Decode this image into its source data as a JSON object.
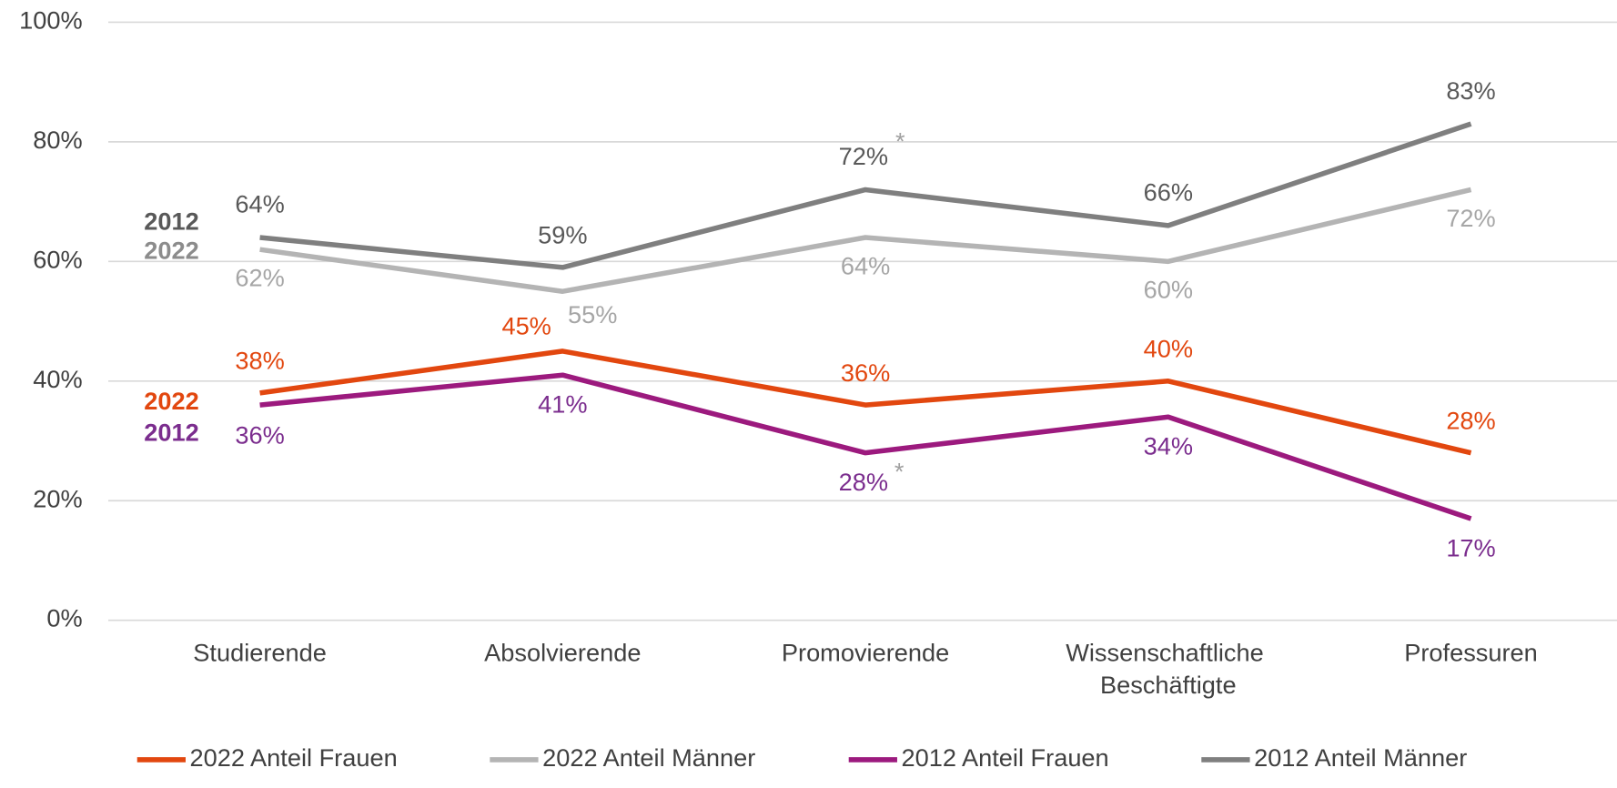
{
  "chart_data": {
    "type": "line",
    "categories": [
      "Studierende",
      "Absolvierende",
      "Promovierende",
      "Wissenschaftliche Beschäftigte",
      "Professuren"
    ],
    "ylim": [
      0,
      100
    ],
    "yticks": [
      {
        "value": 0,
        "label": "0%"
      },
      {
        "value": 20,
        "label": "20%"
      },
      {
        "value": 40,
        "label": "40%"
      },
      {
        "value": 60,
        "label": "60%"
      },
      {
        "value": 80,
        "label": "80%"
      },
      {
        "value": 100,
        "label": "100%"
      }
    ],
    "grid": true,
    "legend": "bottom",
    "series": [
      {
        "name": "2022 Anteil Frauen",
        "color": "#e2470f",
        "start_label": "2022",
        "values": [
          38,
          45,
          36,
          40,
          28
        ],
        "value_labels": [
          "38%",
          "45%",
          "36%",
          "40%",
          "28%"
        ]
      },
      {
        "name": "2022 Anteil Männer",
        "color": "#b4b4b4",
        "start_label": "2022",
        "values": [
          62,
          55,
          64,
          60,
          72
        ],
        "value_labels": [
          "62%",
          "55%",
          "64%",
          "60%",
          "72%"
        ]
      },
      {
        "name": "2012 Anteil Frauen",
        "color": "#9c1a7e",
        "start_label": "2012",
        "values": [
          36,
          41,
          28,
          34,
          17
        ],
        "value_labels": [
          "36%",
          "41%",
          "28%",
          "34%",
          "17%"
        ]
      },
      {
        "name": "2012 Anteil Männer",
        "color": "#7f7f7f",
        "start_label": "2012",
        "values": [
          64,
          59,
          72,
          66,
          83
        ],
        "value_labels": [
          "64%",
          "59%",
          "72%",
          "66%",
          "83%"
        ]
      }
    ],
    "annotations": [
      "*",
      "*"
    ]
  }
}
